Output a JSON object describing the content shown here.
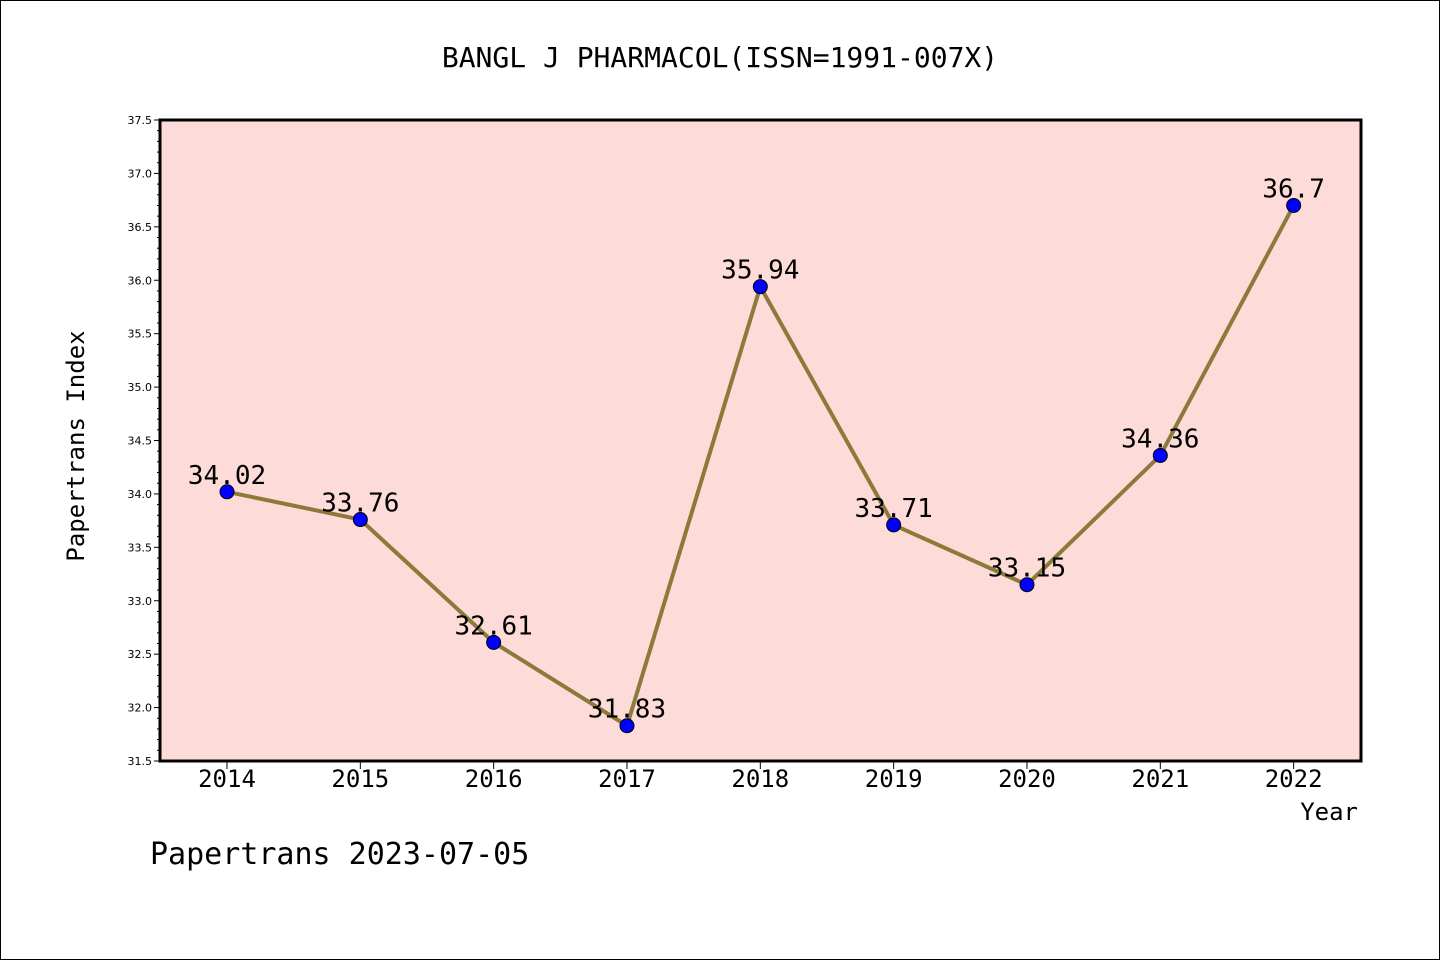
{
  "chart_data": {
    "type": "line",
    "title": "BANGL J PHARMACOL(ISSN=1991-007X)",
    "xlabel": "Year",
    "ylabel": "Papertrans Index",
    "categories": [
      "2014",
      "2015",
      "2016",
      "2017",
      "2018",
      "2019",
      "2020",
      "2021",
      "2022"
    ],
    "series": [
      {
        "values": [
          34.02,
          33.76,
          32.61,
          31.83,
          35.94,
          33.71,
          33.15,
          34.36,
          36.7
        ],
        "data_labels": [
          "34.02",
          "33.76",
          "32.61",
          "31.83",
          "35.94",
          "33.71",
          "33.15",
          "34.36",
          "36.7"
        ]
      }
    ],
    "ylim": [
      31.5,
      37.5
    ],
    "yticks": [
      "31.5",
      "32.0",
      "32.5",
      "33.0",
      "33.5",
      "34.0",
      "34.5",
      "35.0",
      "35.5",
      "36.0",
      "36.5",
      "37.0",
      "37.5"
    ],
    "grid": false,
    "legend": "none"
  },
  "footer": {
    "text": "Papertrans 2023-07-05"
  },
  "colors": {
    "plot_background": "#fddbd9",
    "line": "#8c7a3a",
    "marker": "#0000ff",
    "axis": "#000000"
  }
}
